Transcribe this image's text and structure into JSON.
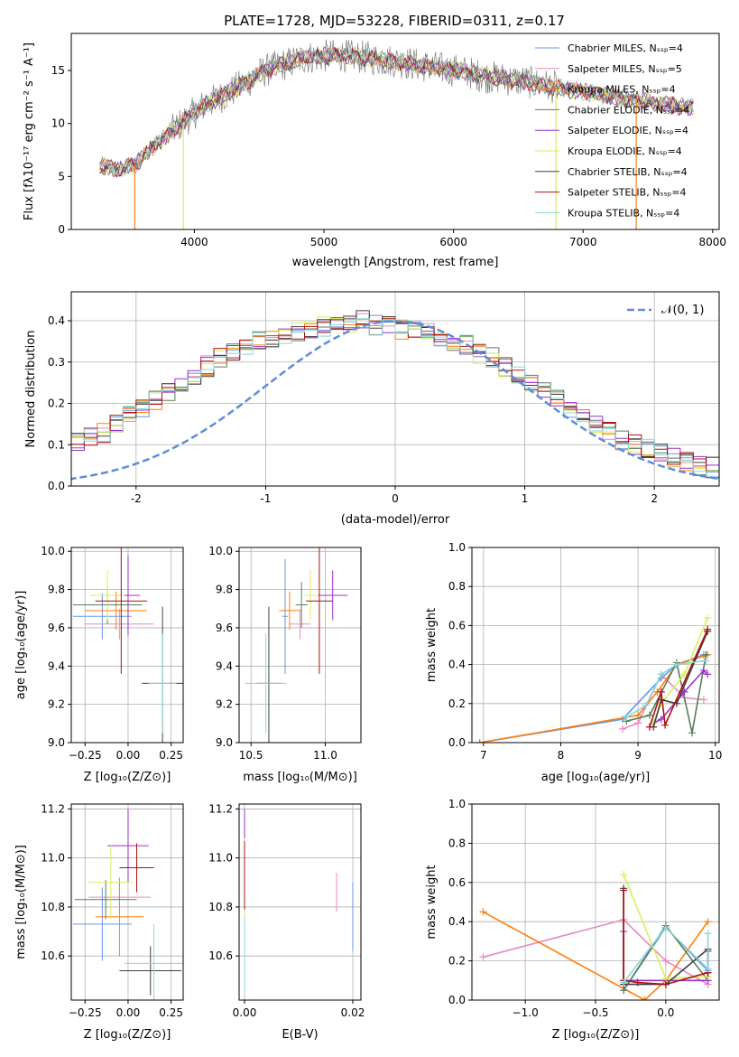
{
  "colors": [
    "#6495ed",
    "#e78ac3",
    "#ff7f0e",
    "#5a7d5a",
    "#9b30c8",
    "#d9ef5b",
    "#404040",
    "#b01010",
    "#88d8d8"
  ],
  "chart_data": [
    {
      "id": "spectrum",
      "type": "line",
      "title": "PLATE=1728, MJD=53228, FIBERID=0311, z=0.17",
      "xlabel": "wavelength [Angstrom, rest frame]",
      "ylabel": "Flux [fλ10⁻¹⁷ erg cm⁻² s⁻¹ A⁻¹]",
      "xlim": [
        3050,
        8050
      ],
      "ylim": [
        0,
        18.5
      ],
      "xticks": [
        4000,
        5000,
        6000,
        7000,
        8000
      ],
      "yticks": [
        0,
        5,
        10,
        15
      ],
      "grid": false,
      "legend_position": "right",
      "series": [
        {
          "name": "Chabrier MILES, Nₛₛₚ=4"
        },
        {
          "name": "Salpeter MILES, Nₛₛₚ=5"
        },
        {
          "name": "Kroupa MILES, Nₛₛₚ=4"
        },
        {
          "name": "Chabrier ELODIE, Nₛₛₚ=4"
        },
        {
          "name": "Salpeter ELODIE, Nₛₛₚ=4"
        },
        {
          "name": "Kroupa ELODIE, Nₛₛₚ=4"
        },
        {
          "name": "Chabrier STELIB, Nₛₛₚ=4"
        },
        {
          "name": "Salpeter STELIB, Nₛₛₚ=4"
        },
        {
          "name": "Kroupa STELIB, Nₛₛₚ=4"
        }
      ],
      "continuum": {
        "x": [
          3270,
          3350,
          3450,
          3550,
          3650,
          3750,
          3850,
          3950,
          4050,
          4150,
          4250,
          4350,
          4450,
          4550,
          4650,
          4750,
          4850,
          4950,
          5050,
          5150,
          5250,
          5350,
          5450,
          5550,
          5650,
          5750,
          5850,
          5950,
          6050,
          6150,
          6250,
          6350,
          6450,
          6550,
          6650,
          6750,
          6850,
          6950,
          7050,
          7150,
          7250,
          7350,
          7450,
          7550,
          7650,
          7750,
          7850
        ],
        "y": [
          6.0,
          5.8,
          5.7,
          6.2,
          7.5,
          8.5,
          9.5,
          10.5,
          11.5,
          12.2,
          12.8,
          13.5,
          14.3,
          15.0,
          15.4,
          15.8,
          16.2,
          16.3,
          16.4,
          16.4,
          16.3,
          16.2,
          16.0,
          15.9,
          15.7,
          15.5,
          15.3,
          15.1,
          15.0,
          14.7,
          14.4,
          14.3,
          14.1,
          14.0,
          13.7,
          13.5,
          13.3,
          13.1,
          12.9,
          12.7,
          12.5,
          12.3,
          12.1,
          11.9,
          11.8,
          11.6,
          11.5
        ]
      }
    },
    {
      "id": "residuals",
      "type": "line",
      "xlabel": "(data-model)/error",
      "ylabel": "Normed distribution",
      "xlim": [
        -2.5,
        2.5
      ],
      "ylim": [
        0,
        0.47
      ],
      "xticks": [
        -2,
        -1,
        0,
        1,
        2
      ],
      "yticks": [
        0.0,
        0.1,
        0.2,
        0.3,
        0.4
      ],
      "grid": true,
      "legend_position": "top-right",
      "legend": "𝒩(0, 1)",
      "bin_width": 0.1,
      "histogram_base": [
        0.03,
        0.035,
        0.04,
        0.045,
        0.05,
        0.06,
        0.07,
        0.08,
        0.09,
        0.1,
        0.11,
        0.12,
        0.13,
        0.15,
        0.17,
        0.19,
        0.21,
        0.23,
        0.25,
        0.27,
        0.29,
        0.31,
        0.32,
        0.34,
        0.35,
        0.36,
        0.37,
        0.375,
        0.38,
        0.385,
        0.39,
        0.395,
        0.4,
        0.39,
        0.385,
        0.38,
        0.375,
        0.37,
        0.36,
        0.35,
        0.34,
        0.32,
        0.31,
        0.29,
        0.27,
        0.25,
        0.23,
        0.21,
        0.19,
        0.17,
        0.15,
        0.13,
        0.11,
        0.1,
        0.09,
        0.08,
        0.07,
        0.06,
        0.05,
        0.045,
        0.04,
        0.035,
        0.03,
        0.03,
        0.025,
        0.025,
        0.02,
        0.02,
        0.02,
        0.02
      ]
    },
    {
      "id": "age-vs-z",
      "type": "scatter",
      "xlabel": "Z [log₁₀(Z/Z⊙)]",
      "ylabel": "age  [log₁₀(age/yr)]",
      "xlim": [
        -0.33,
        0.32
      ],
      "ylim": [
        9.0,
        10.02
      ],
      "xticks": [
        -0.25,
        0.0,
        0.25
      ],
      "xtick_labels": [
        "−0.25",
        "0.00",
        "0.25"
      ],
      "yticks": [
        9.0,
        9.2,
        9.4,
        9.6,
        9.8,
        10.0
      ],
      "ytick_labels": [
        "9.0",
        "9.2",
        "9.4",
        "9.6",
        "9.8",
        "10.0"
      ],
      "grid": true,
      "points": [
        {
          "x": -0.15,
          "y": 9.66,
          "xerr": 0.17,
          "yerr": 0.12
        },
        {
          "x": -0.05,
          "y": 9.62,
          "xerr": 0.2,
          "yerr": 0.08
        },
        {
          "x": -0.07,
          "y": 9.69,
          "xerr": 0.18,
          "yerr": 0.1
        },
        {
          "x": -0.12,
          "y": 9.72,
          "xerr": 0.2,
          "yerr": 0.1
        },
        {
          "x": 0.0,
          "y": 9.77,
          "xerr": 0.07,
          "yerr": 0.21
        },
        {
          "x": -0.12,
          "y": 9.77,
          "xerr": 0.1,
          "yerr": 0.13
        },
        {
          "x": 0.2,
          "y": 9.31,
          "xerr": 0.12,
          "yerr": 0.4
        },
        {
          "x": -0.04,
          "y": 9.74,
          "xerr": 0.15,
          "yerr": 0.38
        },
        {
          "x": 0.2,
          "y": 9.31,
          "xerr": 0.08,
          "yerr": 0.26
        }
      ]
    },
    {
      "id": "age-vs-mass",
      "type": "scatter",
      "xlabel": "mass [log₁₀(M/M⊙)]",
      "ylabel": "",
      "xlim": [
        10.42,
        11.24
      ],
      "ylim": [
        9.0,
        10.02
      ],
      "xticks": [
        10.5,
        11.0
      ],
      "xtick_labels": [
        "10.5",
        "11.0"
      ],
      "yticks": [
        9.0,
        9.2,
        9.4,
        9.6,
        9.8,
        10.0
      ],
      "ytick_labels": [
        "9.0",
        "9.2",
        "9.4",
        "9.6",
        "9.8",
        "10.0"
      ],
      "grid": true,
      "points": [
        {
          "x": 10.73,
          "y": 9.66,
          "xerr": 0.02,
          "yerr": 0.3
        },
        {
          "x": 10.83,
          "y": 9.62,
          "xerr": 0.07,
          "yerr": 0.08
        },
        {
          "x": 10.76,
          "y": 9.69,
          "xerr": 0.07,
          "yerr": 0.1
        },
        {
          "x": 10.84,
          "y": 9.72,
          "xerr": 0.04,
          "yerr": 0.12
        },
        {
          "x": 11.05,
          "y": 9.77,
          "xerr": 0.1,
          "yerr": 0.13
        },
        {
          "x": 10.9,
          "y": 9.77,
          "xerr": 0.04,
          "yerr": 0.13
        },
        {
          "x": 10.62,
          "y": 9.31,
          "xerr": 0.08,
          "yerr": 0.4
        },
        {
          "x": 10.96,
          "y": 9.74,
          "xerr": 0.09,
          "yerr": 0.38
        },
        {
          "x": 10.6,
          "y": 9.31,
          "xerr": 0.14,
          "yerr": 0.26
        }
      ]
    },
    {
      "id": "mass-weight-vs-age",
      "type": "line",
      "xlabel": "age  [log₁₀(age/yr)]",
      "ylabel": "mass weight",
      "xlim": [
        6.85,
        10.05
      ],
      "ylim": [
        0,
        1.0
      ],
      "xticks": [
        7,
        8,
        9,
        10
      ],
      "xtick_labels": [
        "7",
        "8",
        "9",
        "10"
      ],
      "yticks": [
        0.0,
        0.2,
        0.4,
        0.6,
        0.8,
        1.0
      ],
      "ytick_labels": [
        "0.0",
        "0.2",
        "0.4",
        "0.6",
        "0.8",
        "1.0"
      ],
      "grid": true,
      "series": [
        {
          "x": [
            6.95,
            8.8,
            9.3,
            9.5,
            9.85
          ],
          "y": [
            0.0,
            0.12,
            0.33,
            0.4,
            0.45
          ]
        },
        {
          "x": [
            8.8,
            9.0,
            9.3,
            9.6,
            9.85
          ],
          "y": [
            0.07,
            0.1,
            0.35,
            0.23,
            0.22
          ]
        },
        {
          "x": [
            6.95,
            9.0,
            9.25,
            9.5,
            9.9
          ],
          "y": [
            0.0,
            0.14,
            0.26,
            0.4,
            0.45
          ]
        },
        {
          "x": [
            8.85,
            9.15,
            9.5,
            9.7,
            9.88
          ],
          "y": [
            0.11,
            0.14,
            0.41,
            0.05,
            0.45
          ]
        },
        {
          "x": [
            9.2,
            9.3,
            9.6,
            9.85,
            9.9
          ],
          "y": [
            0.1,
            0.12,
            0.26,
            0.37,
            0.35
          ]
        },
        {
          "x": [
            9.2,
            9.3,
            9.6,
            9.9
          ],
          "y": [
            0.1,
            0.2,
            0.35,
            0.64
          ]
        },
        {
          "x": [
            9.2,
            9.3,
            9.5,
            9.9
          ],
          "y": [
            0.08,
            0.22,
            0.2,
            0.57
          ]
        },
        {
          "x": [
            9.15,
            9.3,
            9.35,
            9.9
          ],
          "y": [
            0.08,
            0.26,
            0.09,
            0.58
          ]
        },
        {
          "x": [
            8.85,
            9.1,
            9.3,
            9.5,
            9.88
          ],
          "y": [
            0.13,
            0.19,
            0.35,
            0.4,
            0.42
          ]
        }
      ]
    },
    {
      "id": "mass-vs-z",
      "type": "scatter",
      "xlabel": "Z [log₁₀(Z/Z⊙)]",
      "ylabel": "mass [log₁₀(M/M⊙)]",
      "xlim": [
        -0.33,
        0.32
      ],
      "ylim": [
        10.42,
        11.22
      ],
      "xticks": [
        -0.25,
        0.0,
        0.25
      ],
      "xtick_labels": [
        "−0.25",
        "0.00",
        "0.25"
      ],
      "yticks": [
        10.6,
        10.8,
        11.0,
        11.2
      ],
      "ytick_labels": [
        "10.6",
        "10.8",
        "11.0",
        "11.2"
      ],
      "grid": true,
      "points": [
        {
          "x": -0.15,
          "y": 10.73,
          "xerr": 0.17,
          "yerr": 0.15
        },
        {
          "x": -0.05,
          "y": 10.84,
          "xerr": 0.18,
          "yerr": 0.06
        },
        {
          "x": -0.05,
          "y": 10.76,
          "xerr": 0.14,
          "yerr": 0.16
        },
        {
          "x": -0.13,
          "y": 10.83,
          "xerr": 0.18,
          "yerr": 0.08
        },
        {
          "x": 0.0,
          "y": 11.05,
          "xerr": 0.12,
          "yerr": 0.15
        },
        {
          "x": -0.1,
          "y": 10.9,
          "xerr": 0.13,
          "yerr": 0.15
        },
        {
          "x": 0.13,
          "y": 10.54,
          "xerr": 0.18,
          "yerr": 0.1
        },
        {
          "x": 0.05,
          "y": 10.96,
          "xerr": 0.1,
          "yerr": 0.1
        },
        {
          "x": 0.15,
          "y": 10.57,
          "xerr": 0.17,
          "yerr": 0.16
        }
      ]
    },
    {
      "id": "mass-vs-ebv",
      "type": "scatter",
      "xlabel": "E(B-V)",
      "ylabel": "",
      "xlim": [
        -0.001,
        0.0215
      ],
      "ylim": [
        10.42,
        11.22
      ],
      "xticks": [
        0.0,
        0.02
      ],
      "xtick_labels": [
        "0.00",
        "0.02"
      ],
      "yticks": [
        10.6,
        10.8,
        11.0,
        11.2
      ],
      "ytick_labels": [
        "10.6",
        "10.8",
        "11.0",
        "11.2"
      ],
      "grid": true,
      "points": [
        {
          "x": 0.02,
          "y": 10.76,
          "xerr": 0,
          "yerr": 0.14
        },
        {
          "x": 0.017,
          "y": 10.86,
          "xerr": 0,
          "yerr": 0.08
        },
        {
          "x": 0.0,
          "y": 10.75,
          "xerr": 0,
          "yerr": 0.3
        },
        {
          "x": 0.0,
          "y": 10.8,
          "xerr": 0,
          "yerr": 0.3
        },
        {
          "x": 0.0,
          "y": 11.05,
          "xerr": 0,
          "yerr": 0.15
        },
        {
          "x": 0.0,
          "y": 10.88,
          "xerr": 0,
          "yerr": 0.2
        },
        {
          "x": 0.0,
          "y": 10.6,
          "xerr": 0,
          "yerr": 0.14
        },
        {
          "x": 0.0,
          "y": 10.93,
          "xerr": 0,
          "yerr": 0.14
        },
        {
          "x": 0.0,
          "y": 10.6,
          "xerr": 0,
          "yerr": 0.16
        }
      ]
    },
    {
      "id": "mass-weight-vs-z",
      "type": "line",
      "xlabel": "Z [log₁₀(Z/Z⊙)]",
      "ylabel": "mass weight",
      "xlim": [
        -1.38,
        0.38
      ],
      "ylim": [
        0,
        1.0
      ],
      "xticks": [
        -1.0,
        -0.5,
        0.0
      ],
      "xtick_labels": [
        "−1.0",
        "−0.5",
        "0.0"
      ],
      "yticks": [
        0.0,
        0.2,
        0.4,
        0.6,
        0.8,
        1.0
      ],
      "ytick_labels": [
        "0.0",
        "0.2",
        "0.4",
        "0.6",
        "0.8",
        "1.0"
      ],
      "grid": true,
      "series": [
        {
          "x": [
            -0.3,
            0.0,
            0.3,
            0.3
          ],
          "y": [
            0.05,
            0.37,
            0.15,
            0.12
          ]
        },
        {
          "x": [
            -1.3,
            -0.3,
            0.0,
            0.3
          ],
          "y": [
            0.22,
            0.41,
            0.2,
            0.08
          ]
        },
        {
          "x": [
            -1.3,
            -0.15,
            0.0,
            0.3
          ],
          "y": [
            0.45,
            0.0,
            0.1,
            0.4
          ]
        },
        {
          "x": [
            -0.3,
            0.0,
            0.3
          ],
          "y": [
            0.05,
            0.38,
            0.1
          ]
        },
        {
          "x": [
            -0.3,
            -0.3,
            0.3,
            0.3
          ],
          "y": [
            0.35,
            0.1,
            0.1,
            0.25
          ]
        },
        {
          "x": [
            -0.3,
            0.0,
            0.3
          ],
          "y": [
            0.64,
            0.11,
            0.12
          ]
        },
        {
          "x": [
            -0.3,
            -0.3,
            0.0,
            0.3,
            0.3
          ],
          "y": [
            0.57,
            0.08,
            0.08,
            0.26,
            0.14
          ]
        },
        {
          "x": [
            -0.3,
            -0.3,
            -0.2,
            0.0,
            0.3
          ],
          "y": [
            0.56,
            0.1,
            0.09,
            0.08,
            0.14
          ]
        },
        {
          "x": [
            -0.3,
            0.0,
            0.3,
            0.3
          ],
          "y": [
            0.09,
            0.37,
            0.16,
            0.34
          ]
        }
      ]
    }
  ]
}
